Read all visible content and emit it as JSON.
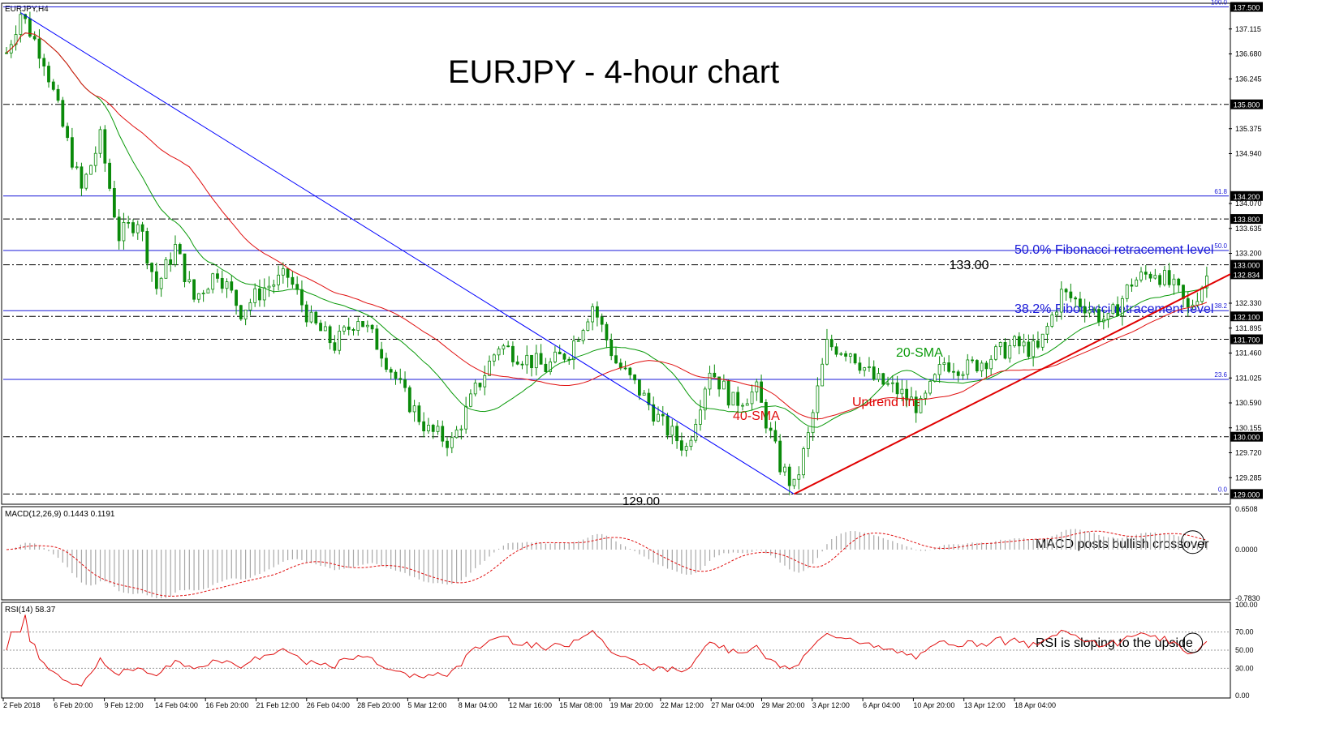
{
  "chart_data": [
    {
      "type": "candlestick",
      "symbol_label": "EURJPY,H4",
      "title": "EURJPY - 4-hour chart",
      "ylim": [
        128.85,
        137.55
      ],
      "y_ticks": [
        "137.115",
        "136.680",
        "136.245",
        "135.375",
        "134.940",
        "134.070",
        "133.635",
        "133.200",
        "132.330",
        "131.895",
        "131.460",
        "131.025",
        "130.590",
        "130.155",
        "129.720",
        "129.285"
      ],
      "x_ticks": [
        "2 Feb 2018",
        "6 Feb 20:00",
        "9 Feb 12:00",
        "14 Feb 04:00",
        "16 Feb 20:00",
        "21 Feb 12:00",
        "26 Feb 04:00",
        "28 Feb 20:00",
        "5 Mar 12:00",
        "8 Mar 04:00",
        "12 Mar 16:00",
        "15 Mar 08:00",
        "19 Mar 20:00",
        "22 Mar 12:00",
        "27 Mar 04:00",
        "29 Mar 20:00",
        "3 Apr 12:00",
        "6 Apr 04:00",
        "10 Apr 20:00",
        "13 Apr 12:00",
        "18 Apr 04:00"
      ],
      "price_path": [
        [
          0,
          136.7
        ],
        [
          3,
          137.4
        ],
        [
          8,
          136.6
        ],
        [
          12,
          135.4
        ],
        [
          16,
          134.3
        ],
        [
          20,
          135.2
        ],
        [
          24,
          133.5
        ],
        [
          28,
          133.8
        ],
        [
          32,
          132.6
        ],
        [
          36,
          133.3
        ],
        [
          40,
          132.4
        ],
        [
          45,
          132.9
        ],
        [
          50,
          132.2
        ],
        [
          55,
          132.6
        ],
        [
          60,
          132.8
        ],
        [
          65,
          132.0
        ],
        [
          70,
          131.6
        ],
        [
          75,
          132.1
        ],
        [
          80,
          131.5
        ],
        [
          85,
          130.7
        ],
        [
          90,
          130.1
        ],
        [
          95,
          129.9
        ],
        [
          100,
          130.8
        ],
        [
          105,
          131.6
        ],
        [
          110,
          131.4
        ],
        [
          115,
          131.2
        ],
        [
          120,
          131.5
        ],
        [
          125,
          132.3
        ],
        [
          130,
          131.3
        ],
        [
          135,
          130.8
        ],
        [
          140,
          130.2
        ],
        [
          145,
          129.8
        ],
        [
          150,
          131.2
        ],
        [
          155,
          130.6
        ],
        [
          160,
          130.8
        ],
        [
          165,
          129.5
        ],
        [
          168,
          129.1
        ],
        [
          171,
          130.0
        ],
        [
          175,
          131.6
        ],
        [
          180,
          131.5
        ],
        [
          185,
          131.0
        ],
        [
          190,
          130.8
        ],
        [
          195,
          130.5
        ],
        [
          200,
          131.3
        ],
        [
          205,
          131.2
        ],
        [
          210,
          131.4
        ],
        [
          215,
          131.6
        ],
        [
          220,
          131.5
        ],
        [
          225,
          132.5
        ],
        [
          230,
          132.3
        ],
        [
          235,
          132.0
        ],
        [
          240,
          132.7
        ],
        [
          245,
          132.9
        ],
        [
          250,
          132.5
        ],
        [
          252,
          132.2
        ],
        [
          256,
          132.8
        ]
      ],
      "horizontal_levels": [
        {
          "price": 137.5,
          "label": "137.500",
          "style": "solid",
          "fib": "100.0"
        },
        {
          "price": 135.8,
          "label": "135.800",
          "style": "dashdot"
        },
        {
          "price": 134.2,
          "label": "134.200",
          "style": "solid",
          "fib": "61.8"
        },
        {
          "price": 133.8,
          "label": "133.800",
          "style": "dashdot"
        },
        {
          "price": 133.0,
          "label": "133.000",
          "style": "dashdot"
        },
        {
          "price": 132.1,
          "label": "132.100",
          "style": "dashdot"
        },
        {
          "price": 131.7,
          "label": "131.700",
          "style": "dashdot"
        },
        {
          "price": 130.0,
          "label": "130.000",
          "style": "dashdot"
        },
        {
          "price": 129.0,
          "label": "129.000",
          "style": "dashdot",
          "fib": "0.0"
        }
      ],
      "fib_levels": [
        {
          "price": 133.25,
          "tag": "50.0",
          "label": "50.0% Fibonacci retracement level"
        },
        {
          "price": 132.2,
          "tag": "38.2",
          "label": "38.2% Fibonacci retracement level"
        },
        {
          "price": 131.0,
          "tag": "23.6",
          "label": ""
        }
      ],
      "current_price": {
        "price": 132.834,
        "label": "132.834"
      },
      "trendlines": [
        {
          "name": "downtrend",
          "from": [
            3,
            137.4
          ],
          "to": [
            168,
            129.0
          ],
          "color": "#0000ff"
        },
        {
          "name": "Uptrend line",
          "from": [
            168,
            129.0
          ],
          "to": [
            265,
            133.0
          ],
          "color": "#e00000"
        }
      ],
      "annotations": {
        "high": "133.00",
        "low": "129.00",
        "sma20": "20-SMA",
        "sma40": "40-SMA",
        "uptrend": "Uptrend line"
      },
      "colors": {
        "sma20": "#0a9a0a",
        "sma40": "#e01010",
        "fib": "#1a1ad8",
        "uptrend": "#e00000",
        "candle": "#0a8a0a"
      }
    },
    {
      "type": "histogram",
      "indicator_label": "MACD(12,26,9) 0.1443 0.1191",
      "ylim": [
        -0.78,
        0.65
      ],
      "y_ticks": [
        "0.6508",
        "0.0000",
        "-0.7830"
      ],
      "annotation": "MACD posts bullish crossover"
    },
    {
      "type": "line",
      "indicator_label": "RSI(14) 58.37",
      "ylim": [
        0,
        100
      ],
      "y_ticks": [
        "100.00",
        "70.00",
        "50.00",
        "30.00",
        "0.00"
      ],
      "annotation": "RSI is sloping to the upside"
    }
  ]
}
